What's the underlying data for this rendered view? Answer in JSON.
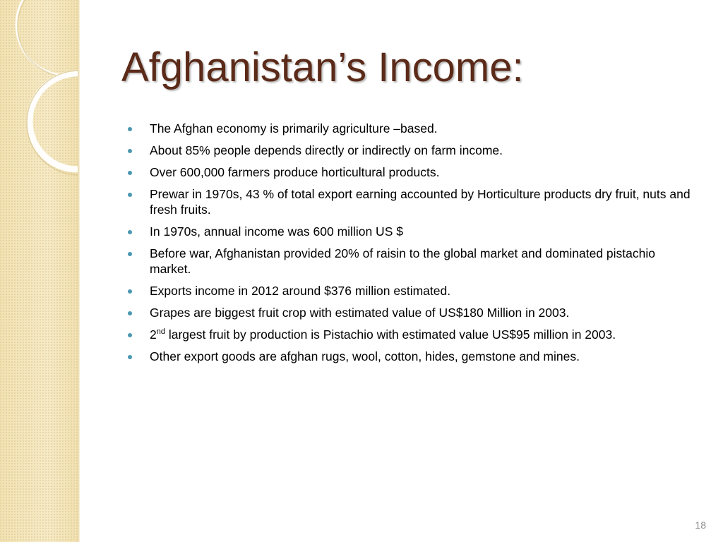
{
  "slide": {
    "title": "Afghanistan’s Income:",
    "page_number": "18",
    "colors": {
      "title": "#5b2a18",
      "bullet": "#4a97b0",
      "side_band": "#f3e5b9"
    },
    "bullets": [
      {
        "text": "The Afghan economy is primarily agriculture –based."
      },
      {
        "text": "About 85% people depends directly or indirectly on farm income."
      },
      {
        "text": "Over 600,000 farmers produce horticultural products."
      },
      {
        "text": "Prewar in 1970s, 43 % of total export earning accounted by Horticulture products dry fruit, nuts and fresh fruits."
      },
      {
        "text": "In 1970s, annual income was 600 million US $"
      },
      {
        "text": "Before war, Afghanistan provided 20% of raisin to the global market and dominated pistachio market."
      },
      {
        "text": "Exports income in 2012 around $376 million estimated."
      },
      {
        "text": "Grapes are biggest fruit crop with estimated value of US$180 Million in 2003."
      },
      {
        "prefix": "2",
        "superscript": "nd",
        "text": " largest fruit by production is Pistachio with estimated value US$95 million in 2003."
      },
      {
        "text": "Other export goods are afghan rugs, wool, cotton, hides,  gemstone and mines."
      }
    ]
  }
}
